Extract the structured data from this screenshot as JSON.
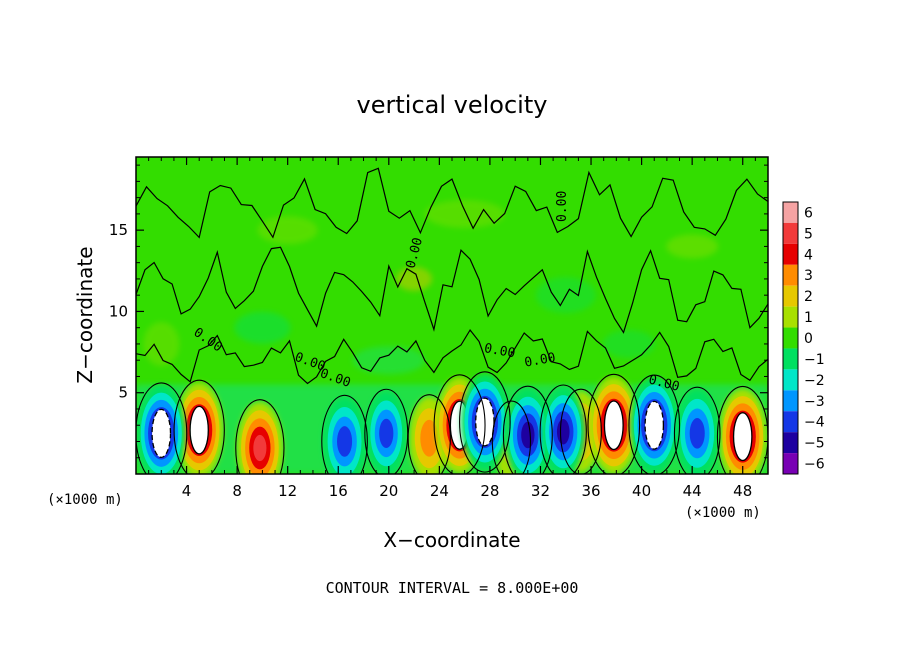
{
  "chart_data": {
    "type": "heatmap",
    "title": "vertical velocity",
    "xlabel": "X−coordinate",
    "ylabel": "Z−coordinate",
    "x_unit_left": "(×1000 m)",
    "x_unit_right": "(×1000 m)",
    "xlim": [
      0,
      50
    ],
    "ylim": [
      0,
      19.5
    ],
    "x_ticks": [
      4,
      8,
      12,
      16,
      20,
      24,
      28,
      32,
      36,
      40,
      44,
      48
    ],
    "y_ticks": [
      5,
      10,
      15
    ],
    "footer": "CONTOUR INTERVAL = 8.000E+00",
    "contour_label": "0.00",
    "colorbar": {
      "min": -6,
      "max": 6,
      "levels": [
        {
          "label": "6",
          "color": "#f5a3a3"
        },
        {
          "label": "5",
          "color": "#f23a3a"
        },
        {
          "label": "4",
          "color": "#e60000"
        },
        {
          "label": "3",
          "color": "#ff8c00"
        },
        {
          "label": "2",
          "color": "#e6c800"
        },
        {
          "label": "1",
          "color": "#a8e000"
        },
        {
          "label": "0",
          "color": "#33dd00"
        },
        {
          "label": "−1",
          "color": "#00e060"
        },
        {
          "label": "−2",
          "color": "#00e6c8"
        },
        {
          "label": "−3",
          "color": "#0096ff"
        },
        {
          "label": "−4",
          "color": "#1437e6"
        },
        {
          "label": "−5",
          "color": "#1e00a0"
        },
        {
          "label": "−6",
          "color": "#7800b4"
        }
      ]
    },
    "updrafts": [
      {
        "x": 5.0,
        "z": 2.7,
        "w": 6.2
      },
      {
        "x": 9.8,
        "z": 1.6,
        "w": 5.6
      },
      {
        "x": 23.2,
        "z": 2.2,
        "w": 3.8
      },
      {
        "x": 25.6,
        "z": 3.0,
        "w": 6.4
      },
      {
        "x": 29.7,
        "z": 2.0,
        "w": 2.6
      },
      {
        "x": 35.2,
        "z": 2.6,
        "w": 3.4
      },
      {
        "x": 37.8,
        "z": 3.0,
        "w": 6.6
      },
      {
        "x": 48.0,
        "z": 2.3,
        "w": 6.3
      }
    ],
    "downdrafts": [
      {
        "x": 2.0,
        "z": 2.5,
        "w": -6.4
      },
      {
        "x": 16.5,
        "z": 2.0,
        "w": -4.8
      },
      {
        "x": 19.8,
        "z": 2.5,
        "w": -4.0
      },
      {
        "x": 27.6,
        "z": 3.2,
        "w": -6.3
      },
      {
        "x": 31.0,
        "z": 2.4,
        "w": -5.8
      },
      {
        "x": 33.8,
        "z": 2.6,
        "w": -5.0
      },
      {
        "x": 41.0,
        "z": 3.0,
        "w": -6.3
      },
      {
        "x": 44.4,
        "z": 2.5,
        "w": -4.8
      }
    ]
  }
}
